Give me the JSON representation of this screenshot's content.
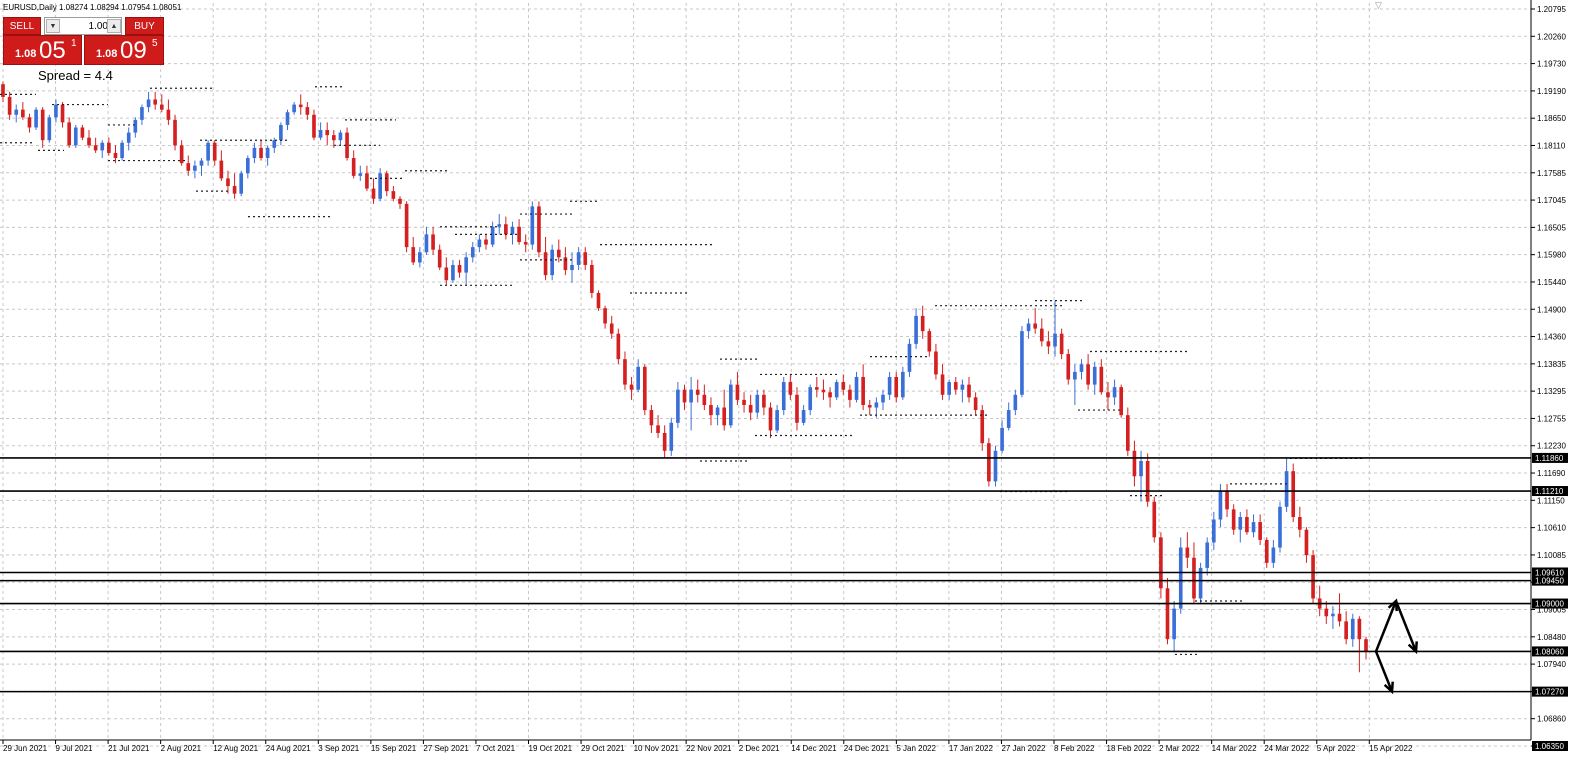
{
  "symbol_info": "EURUSD,Daily  1.08274 1.08294 1.07954 1.08051",
  "trade_panel": {
    "sell_label": "SELL",
    "buy_label": "BUY",
    "lot_value": "1.00",
    "lot_down_icon": "triangle-down-icon",
    "lot_up_icon": "triangle-up-icon",
    "sell_price": {
      "prefix": "1.08",
      "big": "05",
      "sup": "1"
    },
    "buy_price": {
      "prefix": "1.08",
      "big": "09",
      "sup": "5"
    }
  },
  "spread_text": "Spread = 4.4",
  "colors": {
    "bull": "#3a6fd8",
    "bear": "#d42020",
    "grid": "#c8c8c8",
    "panel_red": "#d01b1b"
  },
  "price_axis": {
    "labels": [
      "1.20795",
      "1.20260",
      "1.19730",
      "1.19190",
      "1.18650",
      "1.18110",
      "1.17585",
      "1.17045",
      "1.16505",
      "1.15980",
      "1.15440",
      "1.14900",
      "1.14360",
      "1.13835",
      "1.13295",
      "1.12755",
      "1.12230",
      "1.11690",
      "1.11150",
      "1.10610",
      "1.10085",
      "1.09545",
      "1.09005",
      "1.08480",
      "1.07940",
      "1.07400",
      "1.06860",
      "1.06320"
    ],
    "last_label": "1.06350"
  },
  "date_axis": {
    "labels": [
      "29 Jun 2021",
      "9 Jul 2021",
      "21 Jul 2021",
      "2 Aug 2021",
      "12 Aug 2021",
      "24 Aug 2021",
      "3 Sep 2021",
      "15 Sep 2021",
      "27 Sep 2021",
      "7 Oct 2021",
      "19 Oct 2021",
      "29 Oct 2021",
      "10 Nov 2021",
      "22 Nov 2021",
      "2 Dec 2021",
      "14 Dec 2021",
      "24 Dec 2021",
      "5 Jan 2022",
      "17 Jan 2022",
      "27 Jan 2022",
      "8 Feb 2022",
      "18 Feb 2022",
      "2 Mar 2022",
      "14 Mar 2022",
      "24 Mar 2022",
      "5 Apr 2022",
      "15 Apr 2022"
    ]
  },
  "horizontal_levels": [
    {
      "price": 1.1186,
      "label": "1.11860"
    },
    {
      "price": 1.1121,
      "label": "1.11210"
    },
    {
      "price": 1.0961,
      "label": "1.09610"
    },
    {
      "price": 1.0945,
      "label": "1.09450"
    },
    {
      "price": 1.09,
      "label": "1.09000"
    },
    {
      "price": 1.0806,
      "label": "1.08060"
    },
    {
      "price": 1.0727,
      "label": "1.07270"
    }
  ],
  "chart_data": {
    "type": "candlestick",
    "symbol": "EURUSD",
    "timeframe": "Daily",
    "ylim": [
      1.0632,
      1.2079
    ],
    "x_tick_labels": [
      "29 Jun 2021",
      "9 Jul 2021",
      "21 Jul 2021",
      "2 Aug 2021",
      "12 Aug 2021",
      "24 Aug 2021",
      "3 Sep 2021",
      "15 Sep 2021",
      "27 Sep 2021",
      "7 Oct 2021",
      "19 Oct 2021",
      "29 Oct 2021",
      "10 Nov 2021",
      "22 Nov 2021",
      "2 Dec 2021",
      "14 Dec 2021",
      "24 Dec 2021",
      "5 Jan 2022",
      "17 Jan 2022",
      "27 Jan 2022",
      "8 Feb 2022",
      "18 Feb 2022",
      "2 Mar 2022",
      "14 Mar 2022",
      "24 Mar 2022",
      "5 Apr 2022",
      "15 Apr 2022"
    ],
    "candles_ohlc": [
      [
        1.192,
        1.1925,
        1.1885,
        1.1895
      ],
      [
        1.1895,
        1.1905,
        1.185,
        1.186
      ],
      [
        1.186,
        1.188,
        1.1845,
        1.187
      ],
      [
        1.187,
        1.1885,
        1.185,
        1.1855
      ],
      [
        1.1855,
        1.1862,
        1.1825,
        1.1835
      ],
      [
        1.1835,
        1.1875,
        1.183,
        1.187
      ],
      [
        1.187,
        1.1875,
        1.1795,
        1.181
      ],
      [
        1.181,
        1.186,
        1.1805,
        1.1855
      ],
      [
        1.1855,
        1.189,
        1.1845,
        1.188
      ],
      [
        1.188,
        1.1885,
        1.1835,
        1.1845
      ],
      [
        1.1845,
        1.1855,
        1.1795,
        1.18
      ],
      [
        1.18,
        1.184,
        1.1795,
        1.1835
      ],
      [
        1.1835,
        1.184,
        1.181,
        1.1815
      ],
      [
        1.1815,
        1.183,
        1.1795,
        1.18
      ],
      [
        1.18,
        1.1815,
        1.1785,
        1.179
      ],
      [
        1.179,
        1.181,
        1.1775,
        1.1805
      ],
      [
        1.1805,
        1.1815,
        1.178,
        1.1785
      ],
      [
        1.1785,
        1.18,
        1.1765,
        1.1775
      ],
      [
        1.1775,
        1.181,
        1.177,
        1.1805
      ],
      [
        1.1805,
        1.1835,
        1.179,
        1.1825
      ],
      [
        1.1825,
        1.1855,
        1.1815,
        1.185
      ],
      [
        1.185,
        1.188,
        1.184,
        1.1875
      ],
      [
        1.1875,
        1.1905,
        1.1865,
        1.189
      ],
      [
        1.189,
        1.1905,
        1.187,
        1.188
      ],
      [
        1.188,
        1.19,
        1.1865,
        1.187
      ],
      [
        1.187,
        1.189,
        1.184,
        1.185
      ],
      [
        1.185,
        1.186,
        1.179,
        1.18
      ],
      [
        1.18,
        1.181,
        1.176,
        1.1765
      ],
      [
        1.1765,
        1.178,
        1.174,
        1.175
      ],
      [
        1.175,
        1.177,
        1.1735,
        1.176
      ],
      [
        1.176,
        1.1775,
        1.174,
        1.177
      ],
      [
        1.177,
        1.181,
        1.176,
        1.1805
      ],
      [
        1.1805,
        1.181,
        1.176,
        1.177
      ],
      [
        1.177,
        1.179,
        1.173,
        1.1735
      ],
      [
        1.1735,
        1.175,
        1.1705,
        1.172
      ],
      [
        1.172,
        1.1745,
        1.1695,
        1.1705
      ],
      [
        1.1705,
        1.175,
        1.17,
        1.1745
      ],
      [
        1.1745,
        1.178,
        1.1735,
        1.1775
      ],
      [
        1.1775,
        1.1805,
        1.1765,
        1.1795
      ],
      [
        1.1795,
        1.181,
        1.177,
        1.1775
      ],
      [
        1.1775,
        1.18,
        1.176,
        1.1795
      ],
      [
        1.1795,
        1.1815,
        1.1785,
        1.181
      ],
      [
        1.181,
        1.1845,
        1.18,
        1.184
      ],
      [
        1.184,
        1.187,
        1.183,
        1.1865
      ],
      [
        1.1865,
        1.1885,
        1.186,
        1.188
      ],
      [
        1.188,
        1.19,
        1.186,
        1.1875
      ],
      [
        1.1875,
        1.1885,
        1.185,
        1.186
      ],
      [
        1.186,
        1.187,
        1.181,
        1.1815
      ],
      [
        1.1815,
        1.1845,
        1.181,
        1.183
      ],
      [
        1.183,
        1.1845,
        1.18,
        1.182
      ],
      [
        1.182,
        1.183,
        1.1795,
        1.181
      ],
      [
        1.181,
        1.183,
        1.18,
        1.1825
      ],
      [
        1.1825,
        1.1835,
        1.177,
        1.1775
      ],
      [
        1.1775,
        1.179,
        1.1735,
        1.174
      ],
      [
        1.174,
        1.176,
        1.173,
        1.1745
      ],
      [
        1.1745,
        1.176,
        1.171,
        1.1715
      ],
      [
        1.1715,
        1.1735,
        1.1685,
        1.1695
      ],
      [
        1.1695,
        1.1755,
        1.169,
        1.1745
      ],
      [
        1.1745,
        1.175,
        1.17,
        1.171
      ],
      [
        1.171,
        1.172,
        1.169,
        1.1695
      ],
      [
        1.1695,
        1.17,
        1.1675,
        1.1685
      ],
      [
        1.1685,
        1.169,
        1.159,
        1.16
      ],
      [
        1.16,
        1.162,
        1.1565,
        1.157
      ],
      [
        1.157,
        1.16,
        1.156,
        1.159
      ],
      [
        1.159,
        1.164,
        1.1585,
        1.1625
      ],
      [
        1.1625,
        1.164,
        1.1585,
        1.1595
      ],
      [
        1.1595,
        1.1605,
        1.1555,
        1.156
      ],
      [
        1.156,
        1.158,
        1.1525,
        1.1535
      ],
      [
        1.1535,
        1.1575,
        1.153,
        1.1565
      ],
      [
        1.1565,
        1.1575,
        1.154,
        1.155
      ],
      [
        1.155,
        1.159,
        1.1525,
        1.158
      ],
      [
        1.158,
        1.161,
        1.157,
        1.16
      ],
      [
        1.16,
        1.1625,
        1.159,
        1.1615
      ],
      [
        1.1615,
        1.1625,
        1.1595,
        1.1605
      ],
      [
        1.1605,
        1.165,
        1.16,
        1.164
      ],
      [
        1.164,
        1.1665,
        1.1625,
        1.1645
      ],
      [
        1.1645,
        1.166,
        1.1615,
        1.1625
      ],
      [
        1.1625,
        1.165,
        1.1605,
        1.164
      ],
      [
        1.164,
        1.1655,
        1.1605,
        1.161
      ],
      [
        1.161,
        1.1625,
        1.159,
        1.1605
      ],
      [
        1.1605,
        1.169,
        1.1595,
        1.168
      ],
      [
        1.168,
        1.169,
        1.158,
        1.159
      ],
      [
        1.159,
        1.162,
        1.1535,
        1.1545
      ],
      [
        1.1545,
        1.1605,
        1.1535,
        1.1595
      ],
      [
        1.1595,
        1.1615,
        1.157,
        1.158
      ],
      [
        1.158,
        1.16,
        1.1545,
        1.1555
      ],
      [
        1.1555,
        1.159,
        1.153,
        1.1565
      ],
      [
        1.1565,
        1.16,
        1.1555,
        1.159
      ],
      [
        1.159,
        1.16,
        1.1555,
        1.1565
      ],
      [
        1.1565,
        1.1575,
        1.15,
        1.151
      ],
      [
        1.151,
        1.1515,
        1.1475,
        1.148
      ],
      [
        1.148,
        1.1485,
        1.144,
        1.145
      ],
      [
        1.145,
        1.1465,
        1.142,
        1.143
      ],
      [
        1.143,
        1.144,
        1.137,
        1.138
      ],
      [
        1.138,
        1.1395,
        1.132,
        1.133
      ],
      [
        1.133,
        1.1345,
        1.13,
        1.132
      ],
      [
        1.132,
        1.138,
        1.1315,
        1.1365
      ],
      [
        1.1365,
        1.137,
        1.127,
        1.128
      ],
      [
        1.128,
        1.129,
        1.1235,
        1.125
      ],
      [
        1.125,
        1.127,
        1.1225,
        1.1235
      ],
      [
        1.1235,
        1.125,
        1.1185,
        1.12
      ],
      [
        1.12,
        1.1265,
        1.119,
        1.1255
      ],
      [
        1.1255,
        1.1335,
        1.1245,
        1.132
      ],
      [
        1.132,
        1.133,
        1.128,
        1.1295
      ],
      [
        1.1295,
        1.1345,
        1.124,
        1.132
      ],
      [
        1.132,
        1.134,
        1.1295,
        1.131
      ],
      [
        1.131,
        1.133,
        1.128,
        1.129
      ],
      [
        1.129,
        1.1305,
        1.125,
        1.127
      ],
      [
        1.127,
        1.129,
        1.125,
        1.1285
      ],
      [
        1.1285,
        1.132,
        1.124,
        1.125
      ],
      [
        1.125,
        1.134,
        1.1245,
        1.133
      ],
      [
        1.133,
        1.1355,
        1.129,
        1.13
      ],
      [
        1.13,
        1.1315,
        1.1275,
        1.129
      ],
      [
        1.129,
        1.131,
        1.126,
        1.1275
      ],
      [
        1.1275,
        1.132,
        1.1265,
        1.131
      ],
      [
        1.131,
        1.132,
        1.127,
        1.1285
      ],
      [
        1.1285,
        1.1295,
        1.1225,
        1.124
      ],
      [
        1.124,
        1.129,
        1.1235,
        1.128
      ],
      [
        1.128,
        1.1345,
        1.127,
        1.1335
      ],
      [
        1.1335,
        1.135,
        1.13,
        1.131
      ],
      [
        1.131,
        1.1325,
        1.124,
        1.1255
      ],
      [
        1.1255,
        1.129,
        1.125,
        1.128
      ],
      [
        1.128,
        1.133,
        1.127,
        1.1325
      ],
      [
        1.1325,
        1.1345,
        1.1305,
        1.132
      ],
      [
        1.132,
        1.134,
        1.13,
        1.1315
      ],
      [
        1.1315,
        1.1325,
        1.1285,
        1.1305
      ],
      [
        1.1305,
        1.134,
        1.13,
        1.1335
      ],
      [
        1.1335,
        1.135,
        1.131,
        1.132
      ],
      [
        1.132,
        1.133,
        1.1285,
        1.13
      ],
      [
        1.13,
        1.1355,
        1.1295,
        1.1345
      ],
      [
        1.1345,
        1.137,
        1.128,
        1.129
      ],
      [
        1.129,
        1.13,
        1.127,
        1.1285
      ],
      [
        1.1285,
        1.1305,
        1.1265,
        1.1295
      ],
      [
        1.1295,
        1.132,
        1.128,
        1.131
      ],
      [
        1.131,
        1.1355,
        1.13,
        1.1345
      ],
      [
        1.1345,
        1.1355,
        1.1295,
        1.1305
      ],
      [
        1.1305,
        1.1365,
        1.13,
        1.1355
      ],
      [
        1.1355,
        1.142,
        1.1345,
        1.141
      ],
      [
        1.141,
        1.148,
        1.14,
        1.1465
      ],
      [
        1.1465,
        1.1485,
        1.142,
        1.1435
      ],
      [
        1.1435,
        1.144,
        1.1385,
        1.1395
      ],
      [
        1.1395,
        1.141,
        1.134,
        1.135
      ],
      [
        1.135,
        1.137,
        1.13,
        1.131
      ],
      [
        1.131,
        1.134,
        1.13,
        1.1335
      ],
      [
        1.1335,
        1.1345,
        1.131,
        1.132
      ],
      [
        1.132,
        1.134,
        1.1295,
        1.133
      ],
      [
        1.133,
        1.1345,
        1.1295,
        1.1305
      ],
      [
        1.1305,
        1.1315,
        1.127,
        1.128
      ],
      [
        1.128,
        1.129,
        1.12,
        1.1215
      ],
      [
        1.1215,
        1.1225,
        1.113,
        1.114
      ],
      [
        1.114,
        1.121,
        1.113,
        1.12
      ],
      [
        1.12,
        1.126,
        1.1195,
        1.1245
      ],
      [
        1.1245,
        1.1295,
        1.124,
        1.128
      ],
      [
        1.128,
        1.132,
        1.127,
        1.131
      ],
      [
        1.131,
        1.1445,
        1.1305,
        1.1435
      ],
      [
        1.1435,
        1.146,
        1.142,
        1.145
      ],
      [
        1.145,
        1.148,
        1.143,
        1.144
      ],
      [
        1.144,
        1.146,
        1.1405,
        1.1415
      ],
      [
        1.1415,
        1.1435,
        1.139,
        1.1405
      ],
      [
        1.1405,
        1.1495,
        1.1385,
        1.143
      ],
      [
        1.143,
        1.144,
        1.138,
        1.139
      ],
      [
        1.139,
        1.14,
        1.133,
        1.134
      ],
      [
        1.134,
        1.137,
        1.129,
        1.1355
      ],
      [
        1.1355,
        1.138,
        1.134,
        1.137
      ],
      [
        1.137,
        1.139,
        1.132,
        1.133
      ],
      [
        1.133,
        1.1375,
        1.131,
        1.1365
      ],
      [
        1.1365,
        1.138,
        1.131,
        1.1315
      ],
      [
        1.1315,
        1.1335,
        1.128,
        1.1305
      ],
      [
        1.1305,
        1.134,
        1.129,
        1.1325
      ],
      [
        1.1325,
        1.133,
        1.1265,
        1.127
      ],
      [
        1.127,
        1.1285,
        1.119,
        1.12
      ],
      [
        1.12,
        1.122,
        1.113,
        1.115
      ],
      [
        1.115,
        1.12,
        1.11,
        1.118
      ],
      [
        1.118,
        1.1195,
        1.109,
        1.11
      ],
      [
        1.11,
        1.111,
        1.102,
        1.103
      ],
      [
        1.103,
        1.104,
        1.091,
        1.093
      ],
      [
        1.093,
        1.095,
        1.082,
        1.083
      ],
      [
        1.083,
        1.0905,
        1.0805,
        1.089
      ],
      [
        1.089,
        1.103,
        1.088,
        1.101
      ],
      [
        1.101,
        1.104,
        1.097,
        1.099
      ],
      [
        1.099,
        1.102,
        1.09,
        1.091
      ],
      [
        1.091,
        1.098,
        1.09,
        1.097
      ],
      [
        1.097,
        1.103,
        1.0955,
        1.102
      ],
      [
        1.102,
        1.108,
        1.1005,
        1.1065
      ],
      [
        1.1065,
        1.1135,
        1.105,
        1.112
      ],
      [
        1.112,
        1.1135,
        1.107,
        1.1085
      ],
      [
        1.1085,
        1.1095,
        1.1035,
        1.1045
      ],
      [
        1.1045,
        1.108,
        1.102,
        1.107
      ],
      [
        1.107,
        1.1085,
        1.1035,
        1.104
      ],
      [
        1.104,
        1.1075,
        1.103,
        1.106
      ],
      [
        1.106,
        1.1075,
        1.1015,
        1.1025
      ],
      [
        1.1025,
        1.103,
        1.097,
        1.098
      ],
      [
        1.098,
        1.1025,
        1.097,
        1.101
      ],
      [
        1.101,
        1.11,
        1.1,
        1.109
      ],
      [
        1.109,
        1.1185,
        1.108,
        1.116
      ],
      [
        1.116,
        1.1175,
        1.106,
        1.107
      ],
      [
        1.107,
        1.109,
        1.103,
        1.1045
      ],
      [
        1.1045,
        1.105,
        1.098,
        1.0995
      ],
      [
        1.0995,
        1.1005,
        1.09,
        1.091
      ],
      [
        1.091,
        1.0935,
        1.0875,
        1.089
      ],
      [
        1.089,
        1.0905,
        1.086,
        1.0875
      ],
      [
        1.0875,
        1.0895,
        1.085,
        1.088
      ],
      [
        1.088,
        1.092,
        1.0855,
        1.0865
      ],
      [
        1.0865,
        1.0885,
        1.082,
        1.083
      ],
      [
        1.083,
        1.088,
        1.0815,
        1.087
      ],
      [
        1.087,
        1.0875,
        1.0765,
        1.083
      ],
      [
        1.083,
        1.0835,
        1.079,
        1.0805
      ]
    ]
  }
}
